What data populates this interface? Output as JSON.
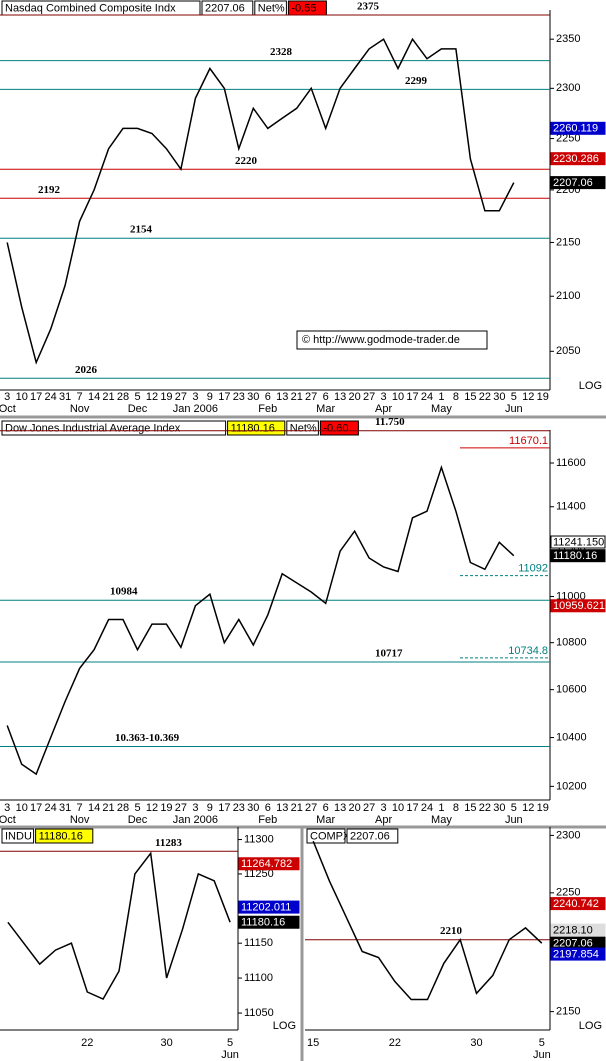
{
  "chart_data": [
    {
      "type": "line",
      "title": "Nasdaq Combined Composite Indx",
      "last": "2207.06",
      "net_label": "Net%",
      "net": "-0.55",
      "last_color": "#ffffff",
      "categories": [
        "3",
        "10",
        "17",
        "24",
        "31",
        "7",
        "14",
        "21",
        "28",
        "5",
        "12",
        "19",
        "27",
        "3",
        "9",
        "17",
        "23",
        "30",
        "6",
        "13",
        "21",
        "27",
        "6",
        "13",
        "20",
        "27",
        "3",
        "10",
        "17",
        "24",
        "1",
        "8",
        "15",
        "22",
        "30",
        "5",
        "12",
        "19"
      ],
      "month_labels": [
        "Oct",
        null,
        null,
        null,
        null,
        "Nov",
        null,
        null,
        null,
        "Dec",
        null,
        null,
        null,
        "Jan 2006",
        null,
        null,
        null,
        null,
        "Feb",
        null,
        null,
        null,
        "Mar",
        null,
        null,
        null,
        "Apr",
        null,
        null,
        null,
        "May",
        null,
        null,
        null,
        null,
        "Jun",
        null,
        null
      ],
      "values": [
        2150,
        2090,
        2040,
        2070,
        2110,
        2170,
        2200,
        2240,
        2260,
        2260,
        2255,
        2240,
        2220,
        2290,
        2320,
        2300,
        2240,
        2280,
        2260,
        2270,
        2280,
        2300,
        2260,
        2300,
        2320,
        2340,
        2350,
        2320,
        2350,
        2330,
        2340,
        2340,
        2230,
        2180,
        2180,
        2207.06,
        null,
        null
      ],
      "color": "#000000",
      "ylim": [
        2020,
        2375
      ],
      "yticks": [
        2050,
        2100,
        2150,
        2200,
        2250,
        2300,
        2350
      ],
      "log_scale": true,
      "log_label": "LOG",
      "levels": [
        {
          "value": 2375,
          "color": "#800000"
        },
        {
          "value": 2328,
          "color": "#008080"
        },
        {
          "value": 2299,
          "color": "#008080"
        },
        {
          "value": 2220,
          "color": "#cc0000"
        },
        {
          "value": 2192,
          "color": "#cc0000"
        },
        {
          "value": 2154,
          "color": "#008080"
        },
        {
          "value": 2026,
          "color": "#008080"
        }
      ],
      "price_tags": [
        {
          "value": 2260.119,
          "color": "#0000cc"
        },
        {
          "value": 2230.286,
          "color": "#cc0000"
        },
        {
          "value": 2207.06,
          "color": "#000000"
        }
      ],
      "credit": "© http://www.godmode-trader.de"
    },
    {
      "type": "line",
      "title": "Dow Jones Industrial Average Index",
      "last": "11180.16",
      "net_label": "Net%",
      "net": "-0.60",
      "last_color": "#ffff00",
      "categories": [
        "3",
        "10",
        "17",
        "24",
        "31",
        "7",
        "14",
        "21",
        "28",
        "5",
        "12",
        "19",
        "27",
        "3",
        "9",
        "17",
        "23",
        "30",
        "6",
        "13",
        "21",
        "27",
        "6",
        "13",
        "20",
        "27",
        "3",
        "10",
        "17",
        "24",
        "1",
        "8",
        "15",
        "22",
        "30",
        "5",
        "12",
        "19"
      ],
      "month_labels": [
        "Oct",
        null,
        null,
        null,
        null,
        "Nov",
        null,
        null,
        null,
        "Dec",
        null,
        null,
        null,
        "Jan 2006",
        null,
        null,
        null,
        null,
        "Feb",
        null,
        null,
        null,
        "Mar",
        null,
        null,
        null,
        "Apr",
        null,
        null,
        null,
        "May",
        null,
        null,
        null,
        null,
        "Jun",
        null,
        null
      ],
      "values": [
        10450,
        10290,
        10250,
        10400,
        10550,
        10690,
        10770,
        10900,
        10900,
        10770,
        10880,
        10880,
        10780,
        10960,
        11010,
        10800,
        10900,
        10790,
        10920,
        11100,
        11060,
        11020,
        10970,
        11200,
        11290,
        11170,
        11130,
        11110,
        11350,
        11380,
        11580,
        11380,
        11150,
        11120,
        11240,
        11180.16,
        null,
        null
      ],
      "color": "#000000",
      "ylim": [
        10165,
        11730
      ],
      "yticks": [
        10200,
        10400,
        10600,
        10800,
        11000,
        11200,
        11400,
        11600
      ],
      "log_scale": true,
      "levels": [
        {
          "value": 11750,
          "label": "11.750",
          "color": "#800000"
        },
        {
          "value": 10984,
          "color": "#008080"
        },
        {
          "value": 10717,
          "color": "#008080"
        },
        {
          "value": 10363,
          "label": "10.363-10.369",
          "color": "#008080"
        }
      ],
      "right_levels": [
        {
          "value": 11670.1,
          "color": "#cc0000"
        },
        {
          "value": 11092,
          "color": "#008080"
        },
        {
          "value": 10734.8,
          "color": "#008080"
        }
      ],
      "price_tags": [
        {
          "value": 11241.15,
          "label": "11241.150",
          "color": "#ffffff"
        },
        {
          "value": 11180.16,
          "color": "#000000"
        },
        {
          "value": 10959.621,
          "color": "#cc0000"
        }
      ]
    },
    {
      "type": "line",
      "title": "INDU",
      "last": "11180.16",
      "last_color": "#ffff00",
      "categories": [
        null,
        null,
        null,
        null,
        null,
        "22",
        null,
        null,
        null,
        null,
        "30",
        null,
        null,
        null,
        "5"
      ],
      "month_labels": [
        null,
        null,
        null,
        null,
        null,
        null,
        null,
        null,
        null,
        null,
        null,
        null,
        null,
        null,
        "Jun"
      ],
      "values": [
        11180,
        11150,
        11120,
        11140,
        11150,
        11080,
        11070,
        11110,
        11250,
        11280,
        11100,
        11170,
        11250,
        11240,
        11180.16
      ],
      "color": "#000000",
      "ylim": [
        11033,
        11311
      ],
      "yticks": [
        11050,
        11100,
        11150,
        11200,
        11250,
        11300
      ],
      "log_scale": true,
      "log_label": "LOG",
      "levels": [
        {
          "value": 11283,
          "color": "#800000"
        }
      ],
      "price_tags": [
        {
          "value": 11264.782,
          "color": "#cc0000"
        },
        {
          "value": 11202.011,
          "color": "#0000cc"
        },
        {
          "value": 11180.16,
          "color": "#000000"
        }
      ]
    },
    {
      "type": "line",
      "title": "COMPX",
      "last": "2207.06",
      "last_color": "#ffffff",
      "categories": [
        "15",
        null,
        null,
        null,
        null,
        "22",
        null,
        null,
        null,
        null,
        "30",
        null,
        null,
        null,
        "5"
      ],
      "month_labels": [
        null,
        null,
        null,
        null,
        null,
        null,
        null,
        null,
        null,
        null,
        null,
        null,
        null,
        null,
        "Jun"
      ],
      "values": [
        2295,
        2260,
        2230,
        2200,
        2195,
        2175,
        2160,
        2160,
        2190,
        2210,
        2165,
        2180,
        2210,
        2220,
        2207.06
      ],
      "color": "#000000",
      "ylim": [
        2139,
        2303
      ],
      "yticks": [
        2150,
        2200,
        2250,
        2300
      ],
      "log_scale": true,
      "log_label": "LOG",
      "levels": [
        {
          "value": 2210,
          "color": "#800000"
        }
      ],
      "price_tags": [
        {
          "value": 2240.742,
          "color": "#cc0000"
        },
        {
          "value": 2218.1,
          "label": "2218.10",
          "color": "#dddddd"
        },
        {
          "value": 2207.06,
          "color": "#000000"
        },
        {
          "value": 2197.854,
          "color": "#0000cc"
        }
      ]
    }
  ]
}
